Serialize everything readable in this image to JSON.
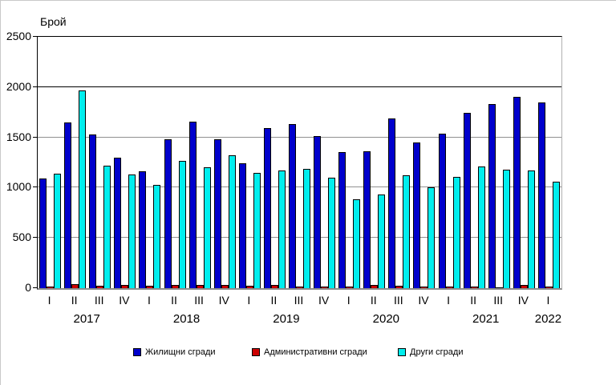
{
  "chart_data": {
    "type": "bar",
    "title": "",
    "ylabel": "Брой",
    "xlabel": "",
    "ylim": [
      0,
      2500
    ],
    "yticks": [
      0,
      500,
      1000,
      1500,
      2000,
      2500
    ],
    "emphasized_gridline": 2000,
    "grid": "horizontal",
    "legend_position": "bottom",
    "categories": [
      "I",
      "II",
      "III",
      "IV",
      "I",
      "II",
      "III",
      "IV",
      "I",
      "II",
      "III",
      "IV",
      "I",
      "II",
      "III",
      "IV",
      "I",
      "II",
      "III",
      "IV",
      "I"
    ],
    "year_groups": [
      {
        "label": "2017",
        "count": 4
      },
      {
        "label": "2018",
        "count": 4
      },
      {
        "label": "2019",
        "count": 4
      },
      {
        "label": "2020",
        "count": 4
      },
      {
        "label": "2021",
        "count": 4
      },
      {
        "label": "2022",
        "count": 1
      }
    ],
    "series": [
      {
        "name": "Жилищни сгради",
        "color": "#0000CC",
        "values": [
          1090,
          1650,
          1530,
          1300,
          1160,
          1480,
          1660,
          1480,
          1240,
          1590,
          1630,
          1510,
          1350,
          1360,
          1690,
          1450,
          1540,
          1740,
          1830,
          1900,
          1850
        ]
      },
      {
        "name": "Административни сгради",
        "color": "#CC0000",
        "values": [
          20,
          40,
          25,
          30,
          25,
          30,
          30,
          30,
          25,
          30,
          20,
          15,
          20,
          30,
          25,
          20,
          20,
          20,
          10,
          30,
          15
        ]
      },
      {
        "name": "Други сгради",
        "color": "#00EEEE",
        "values": [
          1140,
          1970,
          1220,
          1130,
          1030,
          1270,
          1200,
          1320,
          1150,
          1170,
          1190,
          1100,
          880,
          930,
          1120,
          1000,
          1110,
          1210,
          1180,
          1170,
          1060
        ]
      }
    ],
    "legend_x_positions": [
      165,
      313,
      495
    ]
  }
}
